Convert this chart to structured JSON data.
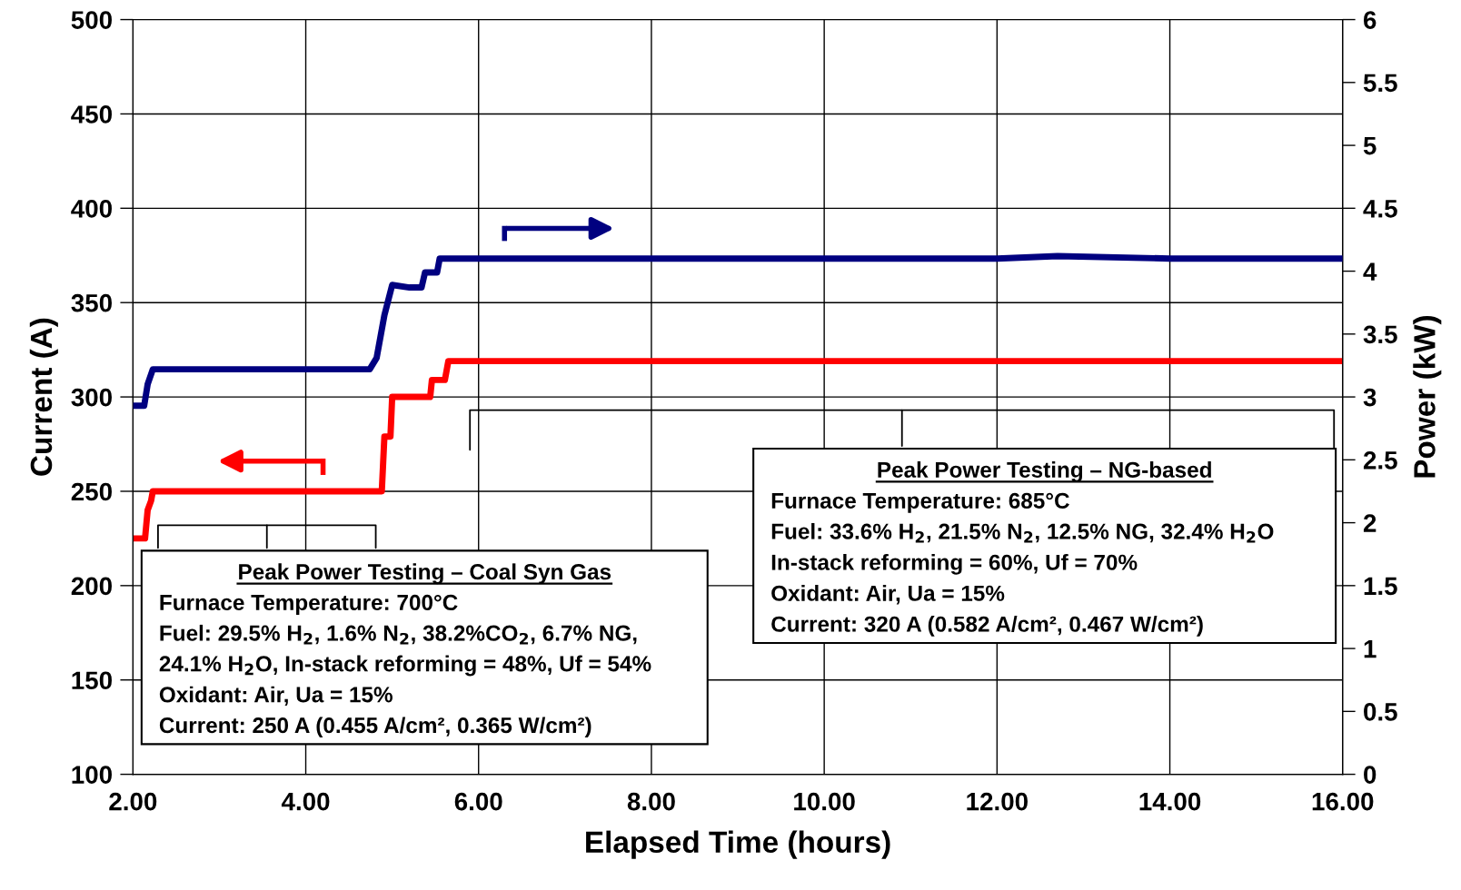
{
  "chart_data": {
    "type": "line",
    "xlabel": "Elapsed Time (hours)",
    "ylabel": "Current (A)",
    "y2label": "Power (kW)",
    "xlim": [
      2,
      16
    ],
    "xticks": [
      {
        "value": 2,
        "label": "2.00"
      },
      {
        "value": 4,
        "label": "4.00"
      },
      {
        "value": 6,
        "label": "6.00"
      },
      {
        "value": 8,
        "label": "8.00"
      },
      {
        "value": 10,
        "label": "10.00"
      },
      {
        "value": 12,
        "label": "12.00"
      },
      {
        "value": 14,
        "label": "14.00"
      },
      {
        "value": 16,
        "label": "16.00"
      }
    ],
    "ylim": [
      100,
      500
    ],
    "yticks": [
      100,
      150,
      200,
      250,
      300,
      350,
      400,
      450,
      500
    ],
    "y2lim": [
      0,
      6
    ],
    "y2ticks": [
      0,
      0.5,
      1,
      1.5,
      2,
      2.5,
      3,
      3.5,
      4,
      4.5,
      5,
      5.5,
      6
    ],
    "grid": true,
    "legend": false,
    "marker": "none",
    "line_style": "solid",
    "series": [
      {
        "color": "#ff0000",
        "x": [
          2,
          2.14,
          2.17,
          2.21,
          2.23,
          3.5,
          4.88,
          4.91,
          4.98,
          5.0,
          5.07,
          5.44,
          5.46,
          5.61,
          5.65,
          8,
          10,
          12,
          14,
          16
        ],
        "values": [
          225,
          225,
          240,
          245,
          250,
          250,
          250,
          279,
          279,
          300,
          300,
          300,
          309,
          309,
          319,
          319,
          319,
          319,
          319,
          319
        ]
      },
      {
        "color": "#000080",
        "axis": "y2",
        "x": [
          2,
          2.13,
          2.17,
          2.23,
          3.5,
          4.74,
          4.82,
          4.91,
          5.0,
          5.2,
          5.34,
          5.38,
          5.52,
          5.55,
          6,
          8,
          10,
          12,
          12.7,
          14,
          16
        ],
        "values": [
          2.93,
          2.93,
          3.1,
          3.22,
          3.22,
          3.22,
          3.31,
          3.65,
          3.89,
          3.87,
          3.87,
          3.99,
          3.99,
          4.1,
          4.1,
          4.1,
          4.1,
          4.1,
          4.12,
          4.1,
          4.1
        ]
      }
    ],
    "annotations": [
      "Peak Power Testing – Coal Syn Gas",
      "Furnace Temperature: 700°C",
      "Fuel: 29.5% H$_{2}$, 1.6% N$_{2}$, 38.2%CO$_{2}$, 6.7% NG,",
      "24.1% H$_{2}$O, In-stack reforming = 48%, Uf = 54%",
      "Oxidant: Air, Ua = 15%",
      "Current: 250 A (0.455 A/cm², 0.365 W/cm²)",
      "Peak Power Testing – NG-based",
      "Furnace Temperature: 685°C",
      "Fuel: 33.6% H$_{2}$, 21.5% N$_{2}$, 12.5% NG, 32.4% H$_{2}$O",
      "In-stack reforming = 60%, Uf = 70%",
      "Oxidant: Air, Ua = 15%",
      "Current: 320 A (0.582 A/cm², 0.467 W/cm²)"
    ]
  }
}
